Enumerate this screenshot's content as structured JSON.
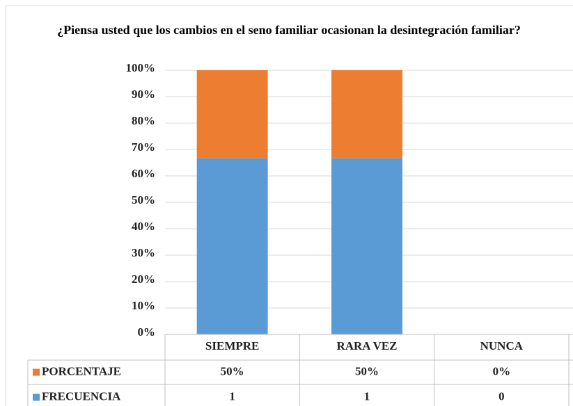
{
  "chart_data": {
    "type": "bar",
    "stacking": "percent",
    "title": "¿Piensa usted que los cambios en el seno familiar ocasionan la desintegración familiar?",
    "categories": [
      "SIEMPRE",
      "RARA VEZ",
      "NUNCA"
    ],
    "series": [
      {
        "name": "FRECUENCIA",
        "color": "#5b9bd5",
        "values": [
          1,
          1,
          0
        ]
      },
      {
        "name": "PORCENTAJE",
        "color": "#ed7d31",
        "values": [
          0.5,
          0.5,
          0
        ],
        "value_labels": [
          "50%",
          "50%",
          "0%"
        ]
      }
    ],
    "ylim": [
      0,
      1
    ],
    "yticks": [
      {
        "value": 0,
        "label": "0%"
      },
      {
        "value": 0.1,
        "label": "10%"
      },
      {
        "value": 0.2,
        "label": "20%"
      },
      {
        "value": 0.3,
        "label": "30%"
      },
      {
        "value": 0.4,
        "label": "40%"
      },
      {
        "value": 0.5,
        "label": "50%"
      },
      {
        "value": 0.6,
        "label": "60%"
      },
      {
        "value": 0.7,
        "label": "70%"
      },
      {
        "value": 0.8,
        "label": "80%"
      },
      {
        "value": 0.9,
        "label": "90%"
      },
      {
        "value": 1,
        "label": "100%"
      }
    ],
    "grid": true,
    "data_table": true
  }
}
